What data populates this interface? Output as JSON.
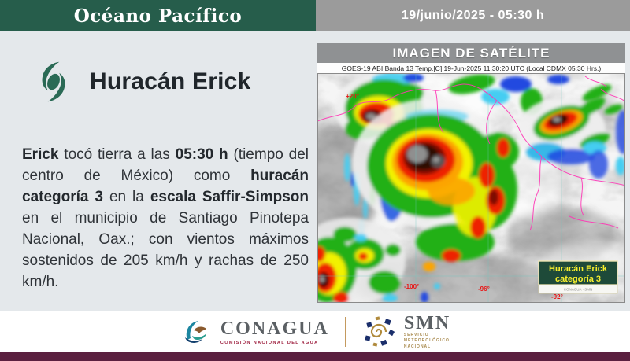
{
  "header": {
    "region_label": "Océano Pacífico",
    "datetime_label": "19/junio/2025 - 05:30 h"
  },
  "bulletin": {
    "title": "Huracán Erick",
    "body_segments": [
      {
        "t": "Erick",
        "b": true
      },
      {
        "t": " tocó tierra a las ",
        "b": false
      },
      {
        "t": "05:30 h",
        "b": true
      },
      {
        "t": " (tiempo del centro de México) como ",
        "b": false
      },
      {
        "t": "huracán categoría 3",
        "b": true
      },
      {
        "t": " en la ",
        "b": false
      },
      {
        "t": "escala Saffir-Simpson",
        "b": true
      },
      {
        "t": " en el municipio de Santiago Pinotepa Nacional, Oax.; con vientos máximos sostenidos de 205 km/h y rachas de 250 km/h.",
        "b": false
      }
    ]
  },
  "satellite": {
    "panel_title": "IMAGEN DE SATÉLITE",
    "caption": "GOES-19 ABI Banda 13 Temp.[C] 19-Jun-2025 11:30:20 UTC (Local CDMX  05:30 Hrs.)",
    "storm_label_line1": "Huracán Erick",
    "storm_label_line2": "categoría 3",
    "watermark": "CONAGUA · SMN",
    "geo_labels": {
      "lat": "+20°",
      "lon_1": "-100°",
      "lon_2": "-96°",
      "lon_3": "-92°"
    }
  },
  "footer": {
    "conagua_name": "CONAGUA",
    "conagua_subtitle": "COMISIÓN NACIONAL DEL AGUA",
    "smn_name": "SMN",
    "smn_subtitle_lines": [
      "SERVICIO",
      "METEOROLÓGICO",
      "NACIONAL"
    ]
  },
  "colors": {
    "header_green": "#265d4b",
    "header_gray": "#9b9b9b",
    "page_bg": "#e4e8eb",
    "bottom_maroon": "#5b2040",
    "cyclone_icon_teal": "#2a6a55",
    "label_box_green": "#1e4a39",
    "label_text_yellow": "#f7ef2d",
    "coastline_magenta": "#ff35b5",
    "conagua_red": "#9f2241",
    "smn_gold": "#b08a3c"
  }
}
